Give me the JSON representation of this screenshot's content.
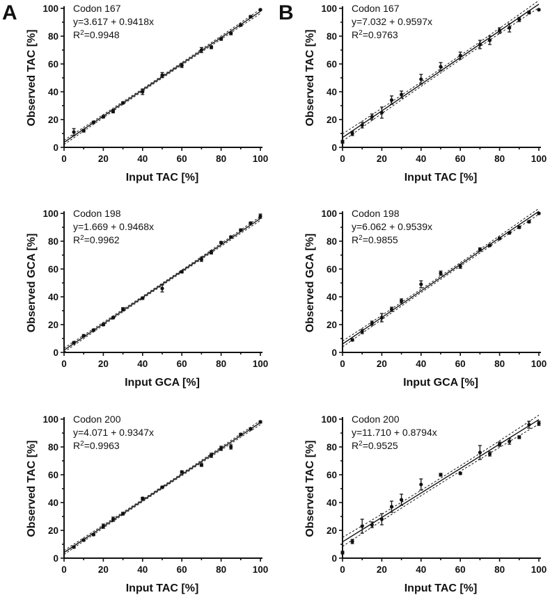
{
  "panel_letters": {
    "A": "A",
    "B": "B"
  },
  "chart_data": [
    {
      "id": "A1",
      "column": "A",
      "row": 0,
      "type": "scatter",
      "title": "Codon 167",
      "equation": "y=3.617 + 0.9418x",
      "r2_prefix": "R",
      "r2_exp": "2",
      "r2_value": "=0.9948",
      "intercept": 3.617,
      "slope": 0.9418,
      "ci_half_width": 1.2,
      "xlabel": "Input TAC [%]",
      "ylabel": "Observed TAC [%]",
      "xlim": [
        0,
        100
      ],
      "ylim": [
        0,
        100
      ],
      "xticks": [
        "0",
        "20",
        "40",
        "60",
        "80",
        "100"
      ],
      "yticks": [
        "0",
        "20",
        "40",
        "60",
        "80",
        "100"
      ],
      "points": [
        {
          "x": 5,
          "y": 11,
          "err": 2.5
        },
        {
          "x": 10,
          "y": 12,
          "err": 1
        },
        {
          "x": 15,
          "y": 18,
          "err": 0.8
        },
        {
          "x": 20,
          "y": 22,
          "err": 0.8
        },
        {
          "x": 25,
          "y": 26,
          "err": 1.2
        },
        {
          "x": 30,
          "y": 32,
          "err": 0.8
        },
        {
          "x": 40,
          "y": 40,
          "err": 2
        },
        {
          "x": 50,
          "y": 52,
          "err": 1.8
        },
        {
          "x": 60,
          "y": 59,
          "err": 1.5
        },
        {
          "x": 70,
          "y": 70,
          "err": 1.8
        },
        {
          "x": 75,
          "y": 72,
          "err": 1
        },
        {
          "x": 80,
          "y": 78,
          "err": 1
        },
        {
          "x": 85,
          "y": 82,
          "err": 1
        },
        {
          "x": 90,
          "y": 88,
          "err": 0.8
        },
        {
          "x": 95,
          "y": 94,
          "err": 0.8
        },
        {
          "x": 100,
          "y": 99,
          "err": 0.5
        }
      ]
    },
    {
      "id": "B1",
      "column": "B",
      "row": 0,
      "type": "scatter",
      "title": "Codon 167",
      "equation": "y=7.032 + 0.9597x",
      "r2_prefix": "R",
      "r2_exp": "2",
      "r2_value": "=0.9763",
      "intercept": 7.032,
      "slope": 0.9597,
      "ci_half_width": 2,
      "xlabel": "Input TAC [%]",
      "ylabel": "Observed TAC [%]",
      "xlim": [
        0,
        100
      ],
      "ylim": [
        0,
        100
      ],
      "xticks": [
        "0",
        "20",
        "40",
        "60",
        "80",
        "100"
      ],
      "yticks": [
        "0",
        "20",
        "40",
        "60",
        "80",
        "100"
      ],
      "points": [
        {
          "x": 0,
          "y": 4,
          "err": 1
        },
        {
          "x": 5,
          "y": 10,
          "err": 1.5
        },
        {
          "x": 10,
          "y": 16,
          "err": 2
        },
        {
          "x": 15,
          "y": 22,
          "err": 2
        },
        {
          "x": 20,
          "y": 25,
          "err": 4
        },
        {
          "x": 25,
          "y": 34,
          "err": 3
        },
        {
          "x": 30,
          "y": 38,
          "err": 2.5
        },
        {
          "x": 40,
          "y": 49,
          "err": 3.5
        },
        {
          "x": 50,
          "y": 58,
          "err": 3
        },
        {
          "x": 60,
          "y": 66,
          "err": 2.5
        },
        {
          "x": 70,
          "y": 74,
          "err": 3
        },
        {
          "x": 75,
          "y": 77,
          "err": 3
        },
        {
          "x": 80,
          "y": 84,
          "err": 2
        },
        {
          "x": 85,
          "y": 86,
          "err": 3
        },
        {
          "x": 90,
          "y": 92,
          "err": 1.5
        },
        {
          "x": 95,
          "y": 97,
          "err": 1
        },
        {
          "x": 100,
          "y": 99,
          "err": 0.5
        }
      ]
    },
    {
      "id": "A2",
      "column": "A",
      "row": 1,
      "type": "scatter",
      "title": "Codon 198",
      "equation": "y=1.669 + 0.9468x",
      "r2_prefix": "R",
      "r2_exp": "2",
      "r2_value": "=0.9962",
      "intercept": 1.669,
      "slope": 0.9468,
      "ci_half_width": 1.1,
      "xlabel": "Input GCA [%]",
      "ylabel": "Observed GCA [%]",
      "xlim": [
        0,
        100
      ],
      "ylim": [
        0,
        100
      ],
      "xticks": [
        "0",
        "20",
        "40",
        "60",
        "80",
        "100"
      ],
      "yticks": [
        "0",
        "20",
        "40",
        "60",
        "80",
        "100"
      ],
      "points": [
        {
          "x": 5,
          "y": 7,
          "err": 0.8
        },
        {
          "x": 10,
          "y": 12,
          "err": 0.8
        },
        {
          "x": 15,
          "y": 16,
          "err": 0.8
        },
        {
          "x": 20,
          "y": 20,
          "err": 0.8
        },
        {
          "x": 25,
          "y": 25,
          "err": 0.8
        },
        {
          "x": 30,
          "y": 31,
          "err": 1.2
        },
        {
          "x": 40,
          "y": 39,
          "err": 0.8
        },
        {
          "x": 50,
          "y": 46,
          "err": 2.5
        },
        {
          "x": 60,
          "y": 58,
          "err": 0.8
        },
        {
          "x": 70,
          "y": 67,
          "err": 1.5
        },
        {
          "x": 75,
          "y": 72,
          "err": 1.2
        },
        {
          "x": 80,
          "y": 79,
          "err": 0.8
        },
        {
          "x": 85,
          "y": 83,
          "err": 0.8
        },
        {
          "x": 90,
          "y": 88,
          "err": 0.8
        },
        {
          "x": 95,
          "y": 93,
          "err": 0.8
        },
        {
          "x": 100,
          "y": 98,
          "err": 1.5
        }
      ]
    },
    {
      "id": "B2",
      "column": "B",
      "row": 1,
      "type": "scatter",
      "title": "Codon 198",
      "equation": "y=6.062 + 0.9539x",
      "r2_prefix": "R",
      "r2_exp": "2",
      "r2_value": "=0.9855",
      "intercept": 6.062,
      "slope": 0.9539,
      "ci_half_width": 1.6,
      "xlabel": "Input GCA [%]",
      "ylabel": "Observed GCA [%]",
      "xlim": [
        0,
        100
      ],
      "ylim": [
        0,
        100
      ],
      "xticks": [
        "0",
        "20",
        "40",
        "60",
        "80",
        "100"
      ],
      "yticks": [
        "0",
        "20",
        "40",
        "60",
        "80",
        "100"
      ],
      "points": [
        {
          "x": 5,
          "y": 9,
          "err": 0.8
        },
        {
          "x": 10,
          "y": 15,
          "err": 1.5
        },
        {
          "x": 15,
          "y": 21,
          "err": 1.5
        },
        {
          "x": 20,
          "y": 25,
          "err": 3
        },
        {
          "x": 25,
          "y": 31,
          "err": 1.5
        },
        {
          "x": 30,
          "y": 37,
          "err": 1.5
        },
        {
          "x": 40,
          "y": 49,
          "err": 2.5
        },
        {
          "x": 50,
          "y": 57,
          "err": 1.5
        },
        {
          "x": 60,
          "y": 62,
          "err": 1.5
        },
        {
          "x": 70,
          "y": 74,
          "err": 1.2
        },
        {
          "x": 75,
          "y": 77,
          "err": 0.8
        },
        {
          "x": 80,
          "y": 82,
          "err": 0.8
        },
        {
          "x": 85,
          "y": 86,
          "err": 0.8
        },
        {
          "x": 90,
          "y": 90,
          "err": 0.8
        },
        {
          "x": 95,
          "y": 94,
          "err": 0.8
        },
        {
          "x": 100,
          "y": 100,
          "err": 0.5
        }
      ]
    },
    {
      "id": "A3",
      "column": "A",
      "row": 2,
      "type": "scatter",
      "title": "Codon 200",
      "equation": "y=4.071 + 0.9347x",
      "r2_prefix": "R",
      "r2_exp": "2",
      "r2_value": "=0.9963",
      "intercept": 4.071,
      "slope": 0.9347,
      "ci_half_width": 1.1,
      "xlabel": "Input TAC [%]",
      "ylabel": "Observed TAC [%]",
      "xlim": [
        0,
        100
      ],
      "ylim": [
        0,
        100
      ],
      "xticks": [
        "0",
        "20",
        "40",
        "60",
        "80",
        "100"
      ],
      "yticks": [
        "0",
        "20",
        "40",
        "60",
        "80",
        "100"
      ],
      "points": [
        {
          "x": 5,
          "y": 8,
          "err": 0.8
        },
        {
          "x": 10,
          "y": 13,
          "err": 0.8
        },
        {
          "x": 15,
          "y": 17,
          "err": 0.8
        },
        {
          "x": 20,
          "y": 23,
          "err": 1.5
        },
        {
          "x": 25,
          "y": 28,
          "err": 1.5
        },
        {
          "x": 30,
          "y": 32,
          "err": 1
        },
        {
          "x": 40,
          "y": 43,
          "err": 0.8
        },
        {
          "x": 50,
          "y": 51,
          "err": 0.8
        },
        {
          "x": 60,
          "y": 62,
          "err": 0.8
        },
        {
          "x": 70,
          "y": 67,
          "err": 1
        },
        {
          "x": 75,
          "y": 74,
          "err": 1.5
        },
        {
          "x": 80,
          "y": 79,
          "err": 1.5
        },
        {
          "x": 85,
          "y": 80,
          "err": 1.5
        },
        {
          "x": 90,
          "y": 89,
          "err": 0.8
        },
        {
          "x": 95,
          "y": 93,
          "err": 0.8
        },
        {
          "x": 100,
          "y": 98,
          "err": 0.8
        }
      ]
    },
    {
      "id": "B3",
      "column": "B",
      "row": 2,
      "type": "scatter",
      "title": "Codon 200",
      "equation": "y=11.710 + 0.8794x",
      "r2_prefix": "R",
      "r2_exp": "2",
      "r2_value": "=0.9525",
      "intercept": 11.71,
      "slope": 0.8794,
      "ci_half_width": 2.5,
      "xlabel": "Input TAC [%]",
      "ylabel": "Observed TAC [%]",
      "xlim": [
        0,
        100
      ],
      "ylim": [
        0,
        100
      ],
      "xticks": [
        "0",
        "20",
        "40",
        "60",
        "80",
        "100"
      ],
      "yticks": [
        "0",
        "20",
        "40",
        "60",
        "80",
        "100"
      ],
      "points": [
        {
          "x": 0,
          "y": 4,
          "err": 1
        },
        {
          "x": 5,
          "y": 12,
          "err": 1.5
        },
        {
          "x": 10,
          "y": 23,
          "err": 5
        },
        {
          "x": 15,
          "y": 24,
          "err": 2
        },
        {
          "x": 20,
          "y": 28,
          "err": 4
        },
        {
          "x": 25,
          "y": 37,
          "err": 4
        },
        {
          "x": 30,
          "y": 42,
          "err": 4
        },
        {
          "x": 40,
          "y": 53,
          "err": 4
        },
        {
          "x": 50,
          "y": 60,
          "err": 1
        },
        {
          "x": 60,
          "y": 61,
          "err": 0.8
        },
        {
          "x": 70,
          "y": 76,
          "err": 5
        },
        {
          "x": 75,
          "y": 75,
          "err": 1.5
        },
        {
          "x": 80,
          "y": 82,
          "err": 1.5
        },
        {
          "x": 85,
          "y": 84,
          "err": 2
        },
        {
          "x": 90,
          "y": 87,
          "err": 1
        },
        {
          "x": 95,
          "y": 96,
          "err": 2.5
        },
        {
          "x": 100,
          "y": 97,
          "err": 1.5
        }
      ]
    }
  ]
}
